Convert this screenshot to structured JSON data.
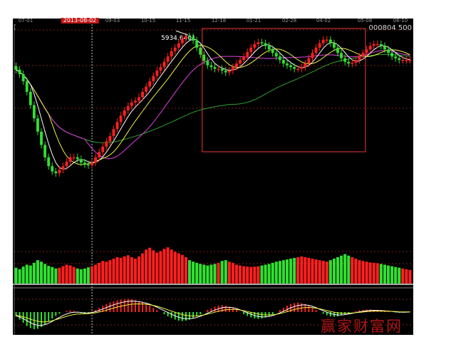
{
  "header": {
    "date_ticks": [
      "07-01",
      "2013-08-02",
      "09-03",
      "10-15",
      "11-15",
      "12-18",
      "01-21",
      "02-28",
      "04-02",
      "05-08",
      "06-10"
    ],
    "selected_date": "2013-08-02",
    "stock_code": "000804",
    "stock_suffix": "500",
    "left_glyph": "("
  },
  "watermark": {
    "text": "赢家财富网"
  },
  "colors": {
    "background": "#000000",
    "up": "#ff2020",
    "down": "#30e030",
    "ma5": "#ffffff",
    "ma10": "#f0f040",
    "ma20": "#e040e0",
    "ma60": "#30a030",
    "box": "#c83030",
    "cursor": "#ffffff"
  },
  "chart_data": {
    "type": "candlestick",
    "title": "",
    "x_ticks": [
      "07-01",
      "2013-08-02",
      "09-03",
      "10-15",
      "11-15",
      "12-18",
      "01-21",
      "02-28",
      "04-02",
      "05-08",
      "06-10"
    ],
    "selected_x": "2013-08-02",
    "peak_annotation": "5934.6401",
    "price_ylim": [
      3600,
      6000
    ],
    "close": [
      5550,
      5500,
      5420,
      5300,
      5150,
      5000,
      4850,
      4700,
      4560,
      4460,
      4400,
      4380,
      4420,
      4460,
      4510,
      4560,
      4560,
      4540,
      4500,
      4480,
      4470,
      4500,
      4560,
      4620,
      4680,
      4740,
      4800,
      4880,
      4960,
      5030,
      5090,
      5140,
      5180,
      5200,
      5240,
      5300,
      5360,
      5420,
      5480,
      5540,
      5580,
      5640,
      5700,
      5760,
      5800,
      5850,
      5900,
      5930,
      5920,
      5880,
      5800,
      5720,
      5650,
      5600,
      5580,
      5560,
      5560,
      5540,
      5520,
      5540,
      5580,
      5620,
      5660,
      5700,
      5750,
      5800,
      5840,
      5860,
      5850,
      5820,
      5780,
      5740,
      5700,
      5660,
      5620,
      5600,
      5580,
      5560,
      5560,
      5580,
      5620,
      5680,
      5740,
      5800,
      5850,
      5890,
      5890,
      5850,
      5800,
      5740,
      5680,
      5640,
      5620,
      5630,
      5660,
      5700,
      5740,
      5780,
      5820,
      5840,
      5840,
      5820,
      5780,
      5740,
      5700,
      5680,
      5660,
      5660,
      5660,
      5660
    ],
    "volume": [
      0.42,
      0.38,
      0.45,
      0.5,
      0.48,
      0.55,
      0.62,
      0.58,
      0.52,
      0.47,
      0.44,
      0.4,
      0.42,
      0.46,
      0.5,
      0.48,
      0.44,
      0.4,
      0.38,
      0.4,
      0.43,
      0.46,
      0.5,
      0.55,
      0.6,
      0.58,
      0.62,
      0.66,
      0.7,
      0.68,
      0.72,
      0.75,
      0.7,
      0.66,
      0.72,
      0.8,
      0.9,
      0.95,
      0.88,
      0.82,
      0.86,
      0.92,
      0.96,
      0.9,
      0.84,
      0.8,
      0.76,
      0.7,
      0.62,
      0.58,
      0.55,
      0.52,
      0.5,
      0.48,
      0.5,
      0.52,
      0.55,
      0.6,
      0.62,
      0.58,
      0.55,
      0.5,
      0.48,
      0.46,
      0.45,
      0.44,
      0.45,
      0.46,
      0.48,
      0.5,
      0.52,
      0.55,
      0.58,
      0.6,
      0.62,
      0.64,
      0.66,
      0.68,
      0.7,
      0.72,
      0.7,
      0.68,
      0.66,
      0.64,
      0.62,
      0.6,
      0.58,
      0.62,
      0.66,
      0.7,
      0.74,
      0.78,
      0.74,
      0.7,
      0.66,
      0.62,
      0.6,
      0.58,
      0.56,
      0.55,
      0.54,
      0.52,
      0.5,
      0.48,
      0.46,
      0.44,
      0.42,
      0.4,
      0.38,
      0.36
    ],
    "macd": [
      -0.2,
      -0.35,
      -0.5,
      -0.65,
      -0.75,
      -0.8,
      -0.78,
      -0.7,
      -0.58,
      -0.45,
      -0.3,
      -0.18,
      -0.08,
      0.0,
      0.05,
      0.08,
      0.05,
      0.0,
      -0.05,
      -0.08,
      -0.05,
      0.02,
      0.1,
      0.2,
      0.3,
      0.38,
      0.45,
      0.5,
      0.55,
      0.58,
      0.6,
      0.62,
      0.6,
      0.55,
      0.5,
      0.45,
      0.38,
      0.3,
      0.2,
      0.1,
      0.0,
      -0.1,
      -0.2,
      -0.28,
      -0.35,
      -0.4,
      -0.42,
      -0.4,
      -0.35,
      -0.28,
      -0.2,
      -0.1,
      0.0,
      0.1,
      0.18,
      0.25,
      0.3,
      0.32,
      0.3,
      0.25,
      0.18,
      0.1,
      0.0,
      -0.1,
      -0.18,
      -0.25,
      -0.3,
      -0.32,
      -0.3,
      -0.25,
      -0.18,
      -0.1,
      0.0,
      0.1,
      0.2,
      0.3,
      0.38,
      0.42,
      0.45,
      0.42,
      0.38,
      0.3,
      0.2,
      0.1,
      0.0,
      -0.08,
      -0.15,
      -0.2,
      -0.22,
      -0.2,
      -0.15,
      -0.1,
      -0.05,
      0.0,
      0.05,
      0.08,
      0.1,
      0.12,
      0.12,
      0.1,
      0.08,
      0.06,
      0.04,
      0.02,
      0.0,
      -0.02,
      -0.03,
      -0.02,
      0.0,
      0.02
    ],
    "volume_ylim": [
      0,
      1
    ],
    "macd_ylim": [
      -1,
      1
    ],
    "grid": true,
    "highlight_box": {
      "from_index": 52,
      "to_index": 109
    },
    "cursor_index": 21
  }
}
